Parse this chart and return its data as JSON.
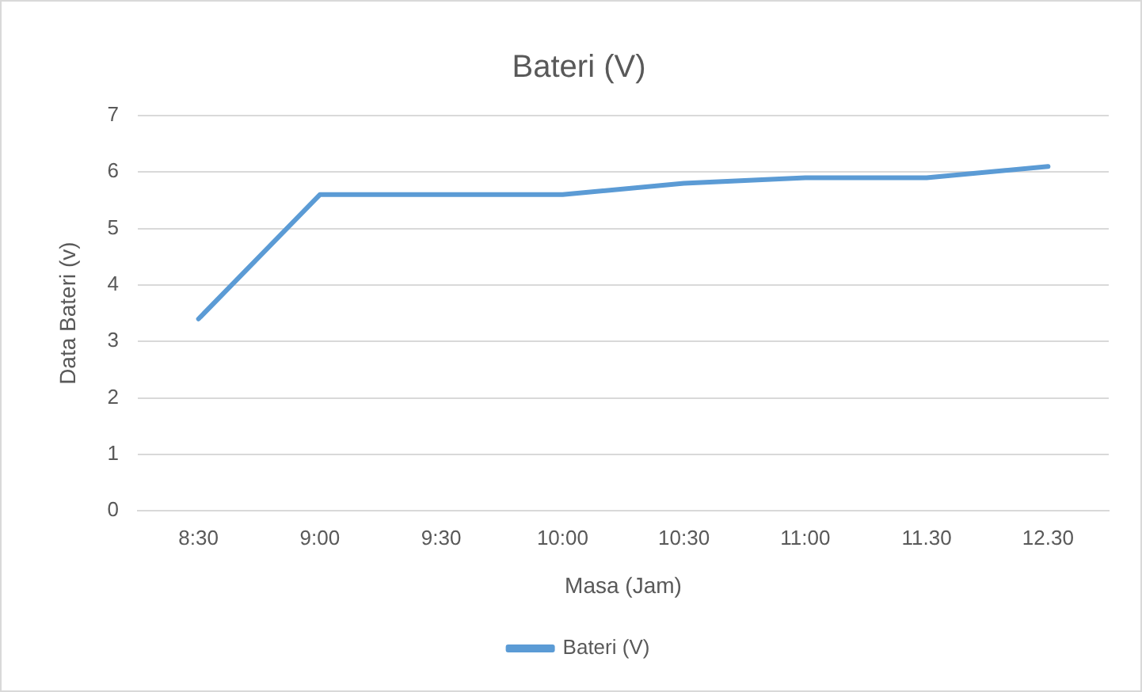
{
  "chart_data": {
    "type": "line",
    "title": "Bateri (V)",
    "xlabel": "Masa (Jam)",
    "ylabel": "Data Bateri (v)",
    "categories": [
      "8:30",
      "9:00",
      "9:30",
      "10:00",
      "10:30",
      "11:00",
      "11.30",
      "12.30"
    ],
    "series": [
      {
        "name": "Bateri (V)",
        "color": "#5b9bd5",
        "values": [
          3.4,
          5.6,
          5.6,
          5.6,
          5.8,
          5.9,
          5.9,
          6.1
        ]
      }
    ],
    "ylim": [
      0,
      7
    ],
    "yticks": [
      0,
      1,
      2,
      3,
      4,
      5,
      6,
      7
    ],
    "grid": "y",
    "legend": "bottom",
    "marker": "none",
    "line_style": "solid"
  }
}
